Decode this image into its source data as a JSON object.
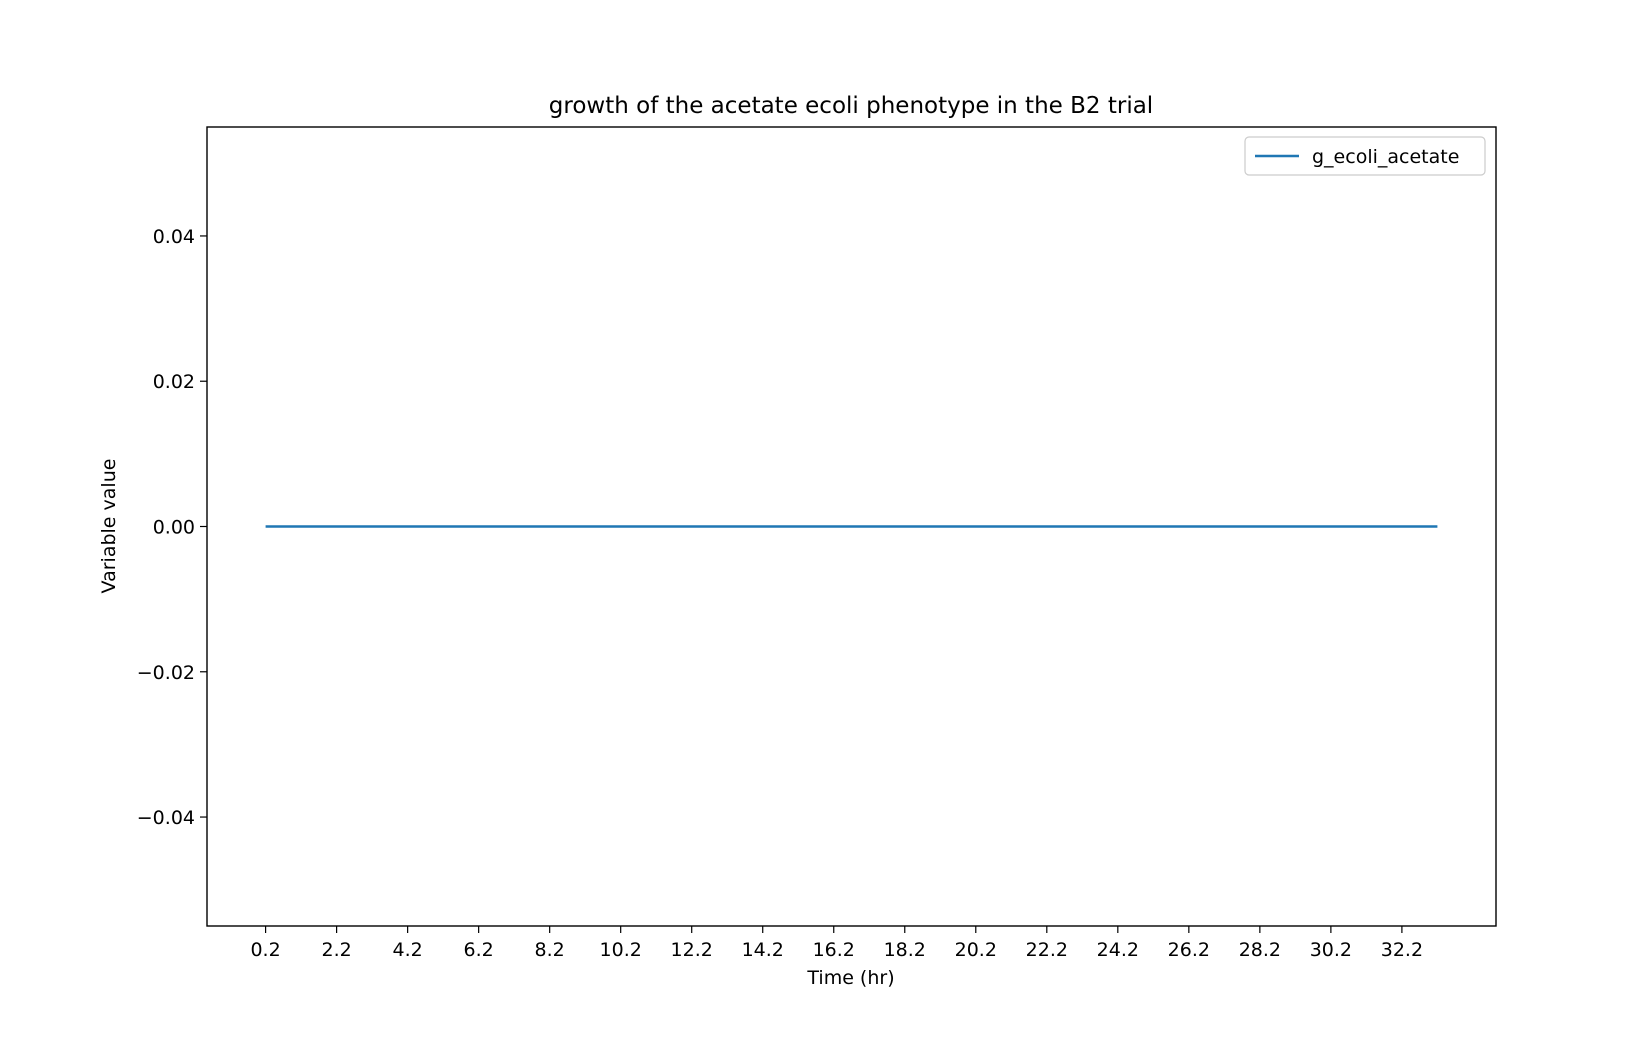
{
  "chart_data": {
    "type": "line",
    "title": "growth of the acetate ecoli phenotype in the B2 trial",
    "xlabel": "Time (hr)",
    "ylabel": "Variable value",
    "xlim": [
      -1.45,
      34.85
    ],
    "ylim": [
      -0.055,
      0.055
    ],
    "x_ticks": [
      0.2,
      2.2,
      4.2,
      6.2,
      8.2,
      10.2,
      12.2,
      14.2,
      16.2,
      18.2,
      20.2,
      22.2,
      24.2,
      26.2,
      28.2,
      30.2,
      32.2
    ],
    "x_tick_labels": [
      "0.2",
      "2.2",
      "4.2",
      "6.2",
      "8.2",
      "10.2",
      "12.2",
      "14.2",
      "16.2",
      "18.2",
      "20.2",
      "22.2",
      "24.2",
      "26.2",
      "28.2",
      "30.2",
      "32.2"
    ],
    "y_ticks": [
      -0.04,
      -0.02,
      0.0,
      0.02,
      0.04
    ],
    "y_tick_labels": [
      "−0.04",
      "−0.02",
      "0.00",
      "0.02",
      "0.04"
    ],
    "grid": false,
    "legend_position": "top-right",
    "series": [
      {
        "name": "g_ecoli_acetate",
        "color": "#1f77b4",
        "x": [
          0.2,
          33.2
        ],
        "y": [
          0,
          0
        ]
      }
    ]
  }
}
